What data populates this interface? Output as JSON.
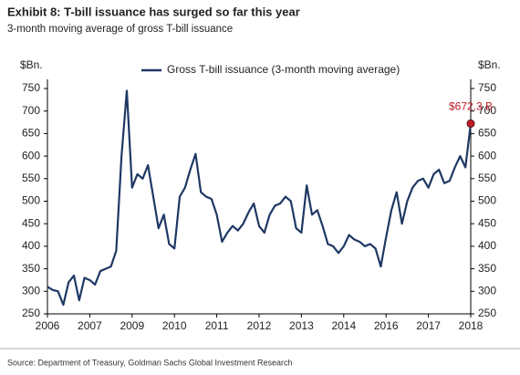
{
  "chart_data": {
    "type": "line",
    "title": "Exhibit 8: T-bill issuance has surged so far this year",
    "subtitle": "3-month moving average of gross T-bill issuance",
    "source": "Source: Department of Treasury, Goldman Sachs Global Investment Research",
    "ylabel": "$Bn.",
    "y2label": "$Bn.",
    "annotation": "$672.3 B",
    "legend": "top",
    "categories": [
      "2006",
      null,
      null,
      null,
      null,
      null,
      null,
      null,
      "2007",
      null,
      null,
      null,
      null,
      null,
      null,
      null,
      "2009",
      null,
      null,
      null,
      null,
      null,
      null,
      null,
      "2010",
      null,
      null,
      null,
      null,
      null,
      null,
      null,
      "2011",
      null,
      null,
      null,
      null,
      null,
      null,
      null,
      "2012",
      null,
      null,
      null,
      null,
      null,
      null,
      null,
      "2013",
      null,
      null,
      null,
      null,
      null,
      null,
      null,
      "2014",
      null,
      null,
      null,
      null,
      null,
      null,
      null,
      "2016",
      null,
      null,
      null,
      null,
      null,
      null,
      null,
      "2017",
      null,
      null,
      null,
      null,
      null,
      null,
      null,
      "2018"
    ],
    "series": [
      {
        "name": "Gross T-bill issuance (3-month moving average)",
        "color": "#1f3864",
        "values": [
          310,
          303,
          300,
          270,
          320,
          335,
          280,
          330,
          325,
          315,
          345,
          350,
          355,
          390,
          600,
          745,
          530,
          560,
          550,
          580,
          510,
          440,
          470,
          405,
          395,
          510,
          530,
          570,
          605,
          520,
          510,
          505,
          470,
          410,
          430,
          445,
          435,
          450,
          475,
          495,
          445,
          430,
          470,
          490,
          495,
          510,
          500,
          440,
          430,
          535,
          470,
          480,
          445,
          405,
          400,
          385,
          400,
          425,
          415,
          410,
          400,
          405,
          395,
          355,
          420,
          480,
          520,
          450,
          500,
          530,
          545,
          550,
          530,
          560,
          570,
          540,
          545,
          575,
          600,
          575,
          672.3
        ]
      }
    ],
    "ylim": [
      250,
      750
    ],
    "yticks": [
      250,
      300,
      350,
      400,
      450,
      500,
      550,
      600,
      650,
      700,
      750
    ],
    "y2lim": [
      250,
      750
    ],
    "y2ticks": [
      250,
      300,
      350,
      400,
      450,
      500,
      550,
      600,
      650,
      700,
      750
    ]
  }
}
